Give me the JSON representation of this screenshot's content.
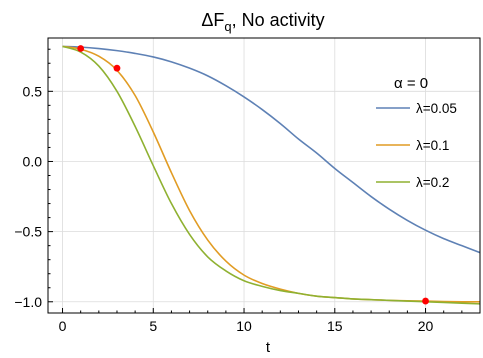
{
  "chart_data": {
    "type": "line",
    "title": "ΔF",
    "title_subscript": "q",
    "title_suffix": ", No activity",
    "xlabel": "t",
    "ylabel": "",
    "xlim": [
      -0.8,
      23
    ],
    "ylim": [
      -1.08,
      0.88
    ],
    "x_ticks": [
      0,
      5,
      10,
      15,
      20
    ],
    "x_tick_labels": [
      "0",
      "5",
      "10",
      "15",
      "20"
    ],
    "y_ticks": [
      -1.0,
      -0.5,
      0.0,
      0.5
    ],
    "y_tick_labels": [
      "−1.0",
      "−0.5",
      "0.0",
      "0.5"
    ],
    "grid": true,
    "legend_title": "α = 0",
    "legend_position": "right",
    "series": [
      {
        "name": "λ=0.05",
        "color": "#5e81b5",
        "x": [
          0,
          1,
          2,
          3,
          4,
          5,
          6,
          7,
          8,
          9,
          10,
          11,
          12,
          13,
          14,
          15,
          16,
          17,
          18,
          19,
          20,
          21,
          22,
          23
        ],
        "y": [
          0.82,
          0.815,
          0.805,
          0.79,
          0.77,
          0.745,
          0.71,
          0.665,
          0.61,
          0.54,
          0.46,
          0.37,
          0.27,
          0.16,
          0.06,
          -0.05,
          -0.15,
          -0.25,
          -0.34,
          -0.42,
          -0.49,
          -0.55,
          -0.6,
          -0.65
        ]
      },
      {
        "name": "λ=0.1",
        "color": "#e19c24",
        "x": [
          0,
          1,
          2,
          3,
          4,
          5,
          6,
          7,
          8,
          9,
          10,
          11,
          12,
          13,
          14,
          15,
          16,
          17,
          18,
          19,
          20,
          21,
          22,
          23
        ],
        "y": [
          0.82,
          0.8,
          0.75,
          0.65,
          0.47,
          0.21,
          -0.08,
          -0.35,
          -0.56,
          -0.71,
          -0.81,
          -0.87,
          -0.91,
          -0.94,
          -0.96,
          -0.97,
          -0.98,
          -0.985,
          -0.99,
          -0.993,
          -0.995,
          -0.998,
          -1.0,
          -1.0
        ]
      },
      {
        "name": "λ=0.2",
        "color": "#8fb131",
        "x": [
          0,
          1,
          2,
          3,
          4,
          5,
          6,
          7,
          8,
          9,
          10,
          11,
          12,
          13,
          14,
          15,
          16,
          17,
          18,
          19,
          20,
          21,
          22,
          23
        ],
        "y": [
          0.82,
          0.78,
          0.68,
          0.5,
          0.25,
          -0.03,
          -0.3,
          -0.52,
          -0.68,
          -0.78,
          -0.85,
          -0.89,
          -0.92,
          -0.94,
          -0.96,
          -0.97,
          -0.98,
          -0.985,
          -0.99,
          -0.995,
          -1.0,
          -1.005,
          -1.01,
          -1.015
        ]
      }
    ],
    "markers": {
      "color": "#ff0000",
      "points": [
        {
          "x": 1,
          "y": 0.805
        },
        {
          "x": 3,
          "y": 0.665
        },
        {
          "x": 20,
          "y": -0.995
        }
      ]
    }
  }
}
